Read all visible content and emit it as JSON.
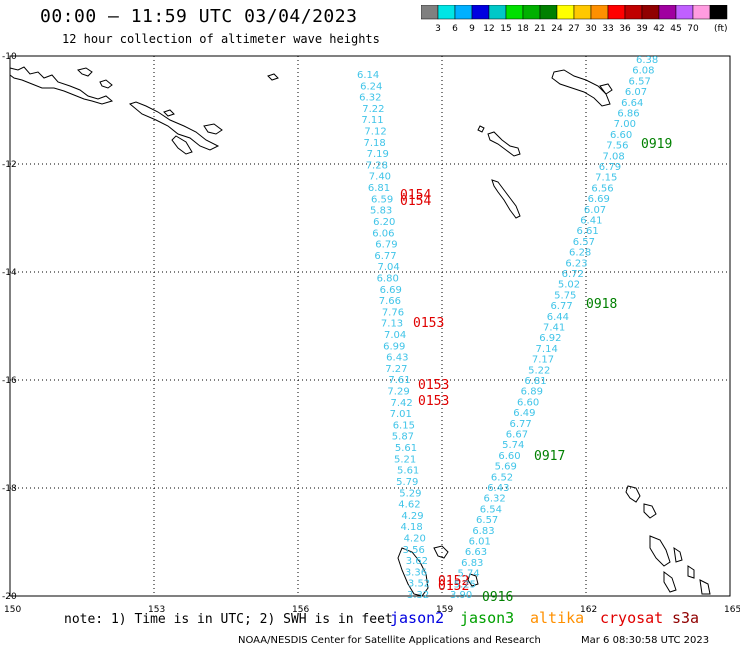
{
  "header": {
    "title": "00:00 — 11:59 UTC 03/04/2023",
    "subtitle": "12 hour collection of altimeter wave heights"
  },
  "color_scale": {
    "colors": [
      "#808080",
      "#00e5e5",
      "#00b0ff",
      "#0000e0",
      "#00c8c8",
      "#00e000",
      "#00b000",
      "#008000",
      "#ffff00",
      "#ffc800",
      "#ff9000",
      "#ff0000",
      "#c00000",
      "#900000",
      "#a000a0",
      "#c060ff",
      "#ff9ce0",
      "#000000"
    ],
    "labels": [
      "3",
      "6",
      "9",
      "12",
      "15",
      "18",
      "21",
      "24",
      "27",
      "30",
      "33",
      "36",
      "39",
      "42",
      "45",
      "70"
    ],
    "unit": "(ft)"
  },
  "axes": {
    "lat_labels": [
      "-10",
      "-12",
      "-14",
      "-16",
      "-18",
      "-20"
    ],
    "lon_labels": [
      "150",
      "153",
      "156",
      "159",
      "162",
      "165"
    ]
  },
  "track_a": {
    "color": "#40c4e8",
    "values": [
      "6.14",
      "6.24",
      "6.32",
      "7.22",
      "7.11",
      "7.12",
      "7.18",
      "7.19",
      "7.28",
      "7.40",
      "6.81",
      "6.59",
      "5.83",
      "6.20",
      "6.06",
      "6.79",
      "6.77",
      "7.04",
      "6.80",
      "6.69",
      "7.66",
      "7.76",
      "7.13",
      "7.04",
      "6.99",
      "6.43",
      "7.27",
      "7.61",
      "7.29",
      "7.42",
      "7.01",
      "6.15",
      "5.87",
      "5.61",
      "5.21",
      "5.61",
      "5.79",
      "5.29",
      "4.62",
      "4.29",
      "4.18",
      "4.20",
      "3.56",
      "3.62",
      "3.36",
      "3.52",
      "3.32"
    ]
  },
  "track_a_times": {
    "color": "#e00000",
    "values": [
      "0154",
      "0154",
      "0153",
      "0153",
      "0153",
      "0152",
      "0152"
    ]
  },
  "track_b": {
    "color": "#40c4e8",
    "values": [
      "6.38",
      "6.08",
      "6.57",
      "6.07",
      "6.64",
      "6.86",
      "7.00",
      "6.60",
      "7.56",
      "7.08",
      "6.79",
      "7.15",
      "6.56",
      "6.69",
      "6.07",
      "6.41",
      "6.61",
      "6.57",
      "6.28",
      "6.23",
      "6.72",
      "5.02",
      "5.75",
      "6.77",
      "6.44",
      "7.41",
      "6.92",
      "7.14",
      "7.17",
      "5.22",
      "6.81",
      "6.89",
      "6.60",
      "6.49",
      "6.77",
      "6.67",
      "5.74",
      "6.60",
      "5.69",
      "6.52",
      "6.43",
      "6.32",
      "6.54",
      "6.57",
      "6.83",
      "6.01",
      "6.63",
      "6.83",
      "5.74",
      "5.25",
      "3.90"
    ]
  },
  "track_b_times": {
    "color": "#008000",
    "values": [
      "0919",
      "0918",
      "0917",
      "0916"
    ]
  },
  "note": "note:  1) Time is in UTC; 2) SWH is in feet",
  "satellites": [
    {
      "label": "jason2",
      "color": "#0000e0"
    },
    {
      "label": "jason3",
      "color": "#00a000"
    },
    {
      "label": "altika",
      "color": "#ff9000"
    },
    {
      "label": "cryosat",
      "color": "#e00000"
    },
    {
      "label": "s3a",
      "color": "#900000"
    }
  ],
  "footer": {
    "agency": "NOAA/NESDIS Center for Satellite Applications and Research",
    "timestamp": "Mar  6 08:30:58 UTC 2023"
  }
}
